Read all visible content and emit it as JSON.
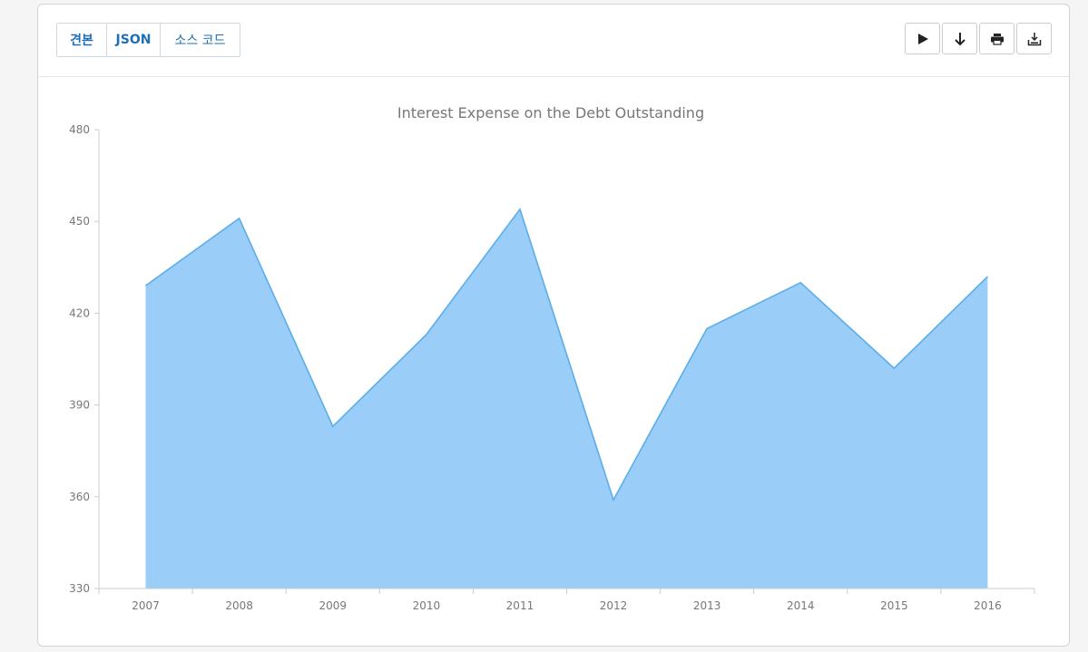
{
  "toolbar": {
    "tabs": [
      "견본",
      "JSON",
      "소스 코드"
    ],
    "actions": [
      "play-icon",
      "arrow-down-icon",
      "print-icon",
      "download-icon"
    ]
  },
  "colors": {
    "area_fill": "#9acdf7",
    "area_stroke": "#5aaeea",
    "tab_text": "#1f6fb5",
    "axis": "#cccccc",
    "label": "#777777"
  },
  "chart_data": {
    "type": "area",
    "title": "Interest Expense on the Debt Outstanding",
    "categories": [
      "2007",
      "2008",
      "2009",
      "2010",
      "2011",
      "2012",
      "2013",
      "2014",
      "2015",
      "2016"
    ],
    "series": [
      {
        "values": [
          429,
          451,
          383,
          413,
          454,
          359,
          415,
          430,
          402,
          432
        ]
      }
    ],
    "ylim": [
      330,
      480
    ],
    "yticks": [
      330,
      360,
      390,
      420,
      450,
      480
    ],
    "grid": false,
    "legend": "none"
  }
}
